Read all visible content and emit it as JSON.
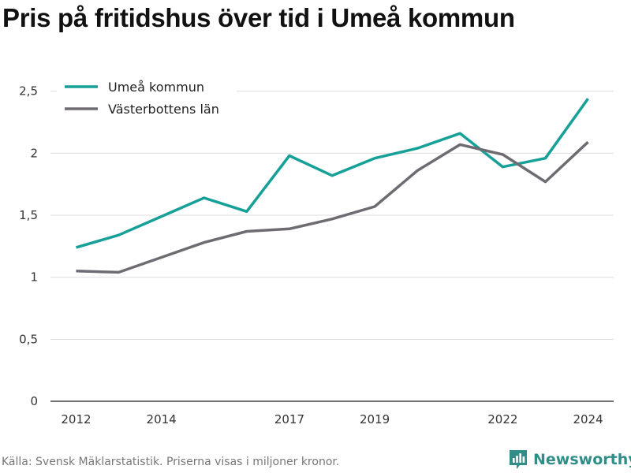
{
  "title": "Pris på fritidshus över tid i Umeå kommun",
  "source": "Källa: Svensk Mäklarstatistik. Priserna visas i miljoner kronor.",
  "brand": "Newsworthy",
  "colors": {
    "umea": "#16a098",
    "vasterbotten": "#6e6c72",
    "grid": "#dddddd",
    "brand": "#2f8f88"
  },
  "chart_data": {
    "type": "line",
    "title": "Pris på fritidshus över tid i Umeå kommun",
    "xlabel": "",
    "ylabel": "",
    "x": [
      2012,
      2013,
      2014,
      2015,
      2016,
      2017,
      2018,
      2019,
      2020,
      2021,
      2022,
      2023,
      2024
    ],
    "xticks": [
      "2012",
      "2014",
      "2017",
      "2019",
      "2022",
      "2024"
    ],
    "xtick_values": [
      2012,
      2014,
      2017,
      2019,
      2022,
      2024
    ],
    "yticks": [
      "0",
      "0,5",
      "1",
      "1,5",
      "2",
      "2,5"
    ],
    "ytick_values": [
      0,
      0.5,
      1,
      1.5,
      2,
      2.5
    ],
    "xlim": [
      2011.4,
      2024.6
    ],
    "ylim": [
      0,
      2.6
    ],
    "grid": "horizontal",
    "legend_position": "top-left",
    "series": [
      {
        "name": "Umeå kommun",
        "color": "#16a098",
        "values": [
          1.24,
          1.34,
          1.49,
          1.64,
          1.53,
          1.98,
          1.82,
          1.96,
          2.04,
          2.16,
          1.89,
          1.96,
          2.44
        ]
      },
      {
        "name": "Västerbottens län",
        "color": "#6e6c72",
        "values": [
          1.05,
          1.04,
          1.16,
          1.28,
          1.37,
          1.39,
          1.47,
          1.57,
          1.86,
          2.07,
          1.99,
          1.77,
          2.09
        ]
      }
    ]
  }
}
